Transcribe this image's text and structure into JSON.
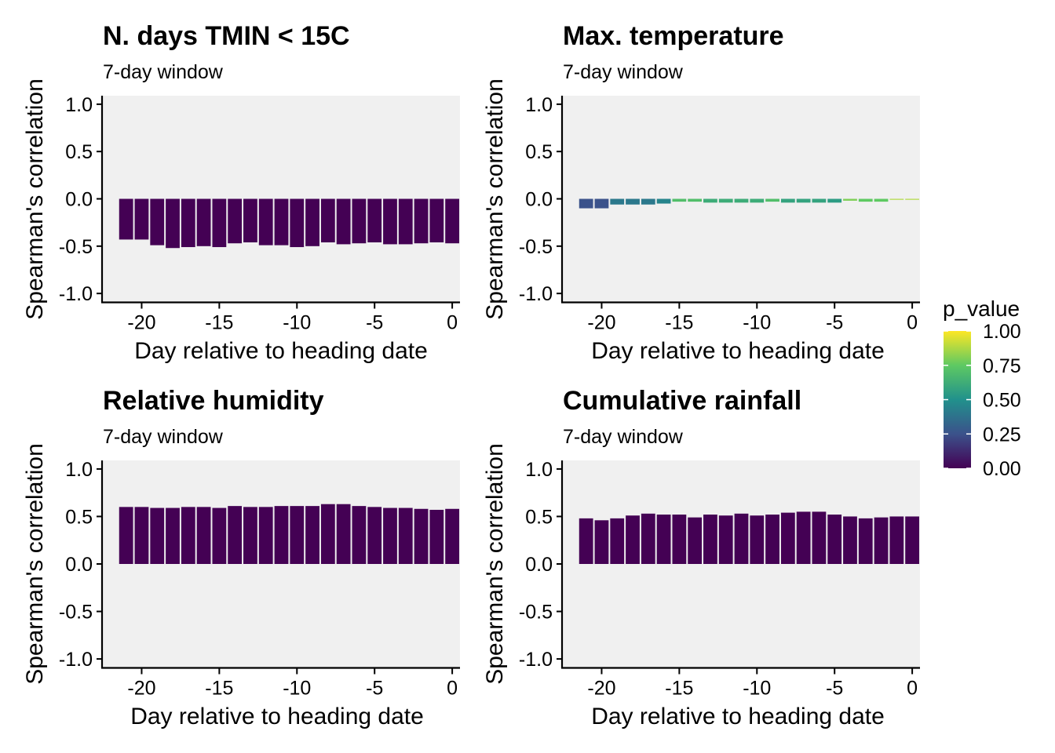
{
  "chart_data": [
    {
      "type": "bar",
      "title": "N. days TMIN < 15C",
      "subtitle": "7-day window",
      "xlabel": "Day relative to heading date",
      "ylabel": "Spearman's correlation",
      "ylim": [
        -1.0,
        1.0
      ],
      "xlim": [
        -22.5,
        0.5
      ],
      "xticks": [
        "-20",
        "-15",
        "-10",
        "-5",
        "0"
      ],
      "yticks": [
        "-1.0",
        "-0.5",
        "0.0",
        "0.5",
        "1.0"
      ],
      "x": [
        -21,
        -20,
        -19,
        -18,
        -17,
        -16,
        -15,
        -14,
        -13,
        -12,
        -11,
        -10,
        -9,
        -8,
        -7,
        -6,
        -5,
        -4,
        -3,
        -2,
        -1,
        0
      ],
      "values": [
        -0.43,
        -0.43,
        -0.49,
        -0.52,
        -0.51,
        -0.5,
        -0.51,
        -0.47,
        -0.46,
        -0.49,
        -0.49,
        -0.51,
        -0.5,
        -0.46,
        -0.48,
        -0.47,
        -0.46,
        -0.48,
        -0.48,
        -0.47,
        -0.46,
        -0.47
      ],
      "p_values": [
        0.0,
        0.0,
        0.0,
        0.0,
        0.0,
        0.0,
        0.0,
        0.0,
        0.0,
        0.0,
        0.0,
        0.0,
        0.0,
        0.0,
        0.0,
        0.0,
        0.0,
        0.0,
        0.0,
        0.0,
        0.0,
        0.0
      ],
      "background": "#f0f0f0",
      "grid": false
    },
    {
      "type": "bar",
      "title": "Max. temperature",
      "subtitle": "7-day window",
      "xlabel": "Day relative to heading date",
      "ylabel": "Spearman's correlation",
      "ylim": [
        -1.0,
        1.0
      ],
      "xlim": [
        -22.5,
        0.5
      ],
      "xticks": [
        "-20",
        "-15",
        "-10",
        "-5",
        "0"
      ],
      "yticks": [
        "-1.0",
        "-0.5",
        "0.0",
        "0.5",
        "1.0"
      ],
      "x": [
        -21,
        -20,
        -19,
        -18,
        -17,
        -16,
        -15,
        -14,
        -13,
        -12,
        -11,
        -10,
        -9,
        -8,
        -7,
        -6,
        -5,
        -4,
        -3,
        -2,
        -1,
        0
      ],
      "values": [
        -0.1,
        -0.1,
        -0.06,
        -0.06,
        -0.06,
        -0.05,
        -0.03,
        -0.03,
        -0.04,
        -0.04,
        -0.04,
        -0.04,
        -0.03,
        -0.04,
        -0.04,
        -0.04,
        -0.04,
        -0.02,
        -0.03,
        -0.03,
        -0.01,
        -0.01
      ],
      "p_values": [
        0.25,
        0.25,
        0.4,
        0.4,
        0.4,
        0.45,
        0.7,
        0.7,
        0.62,
        0.62,
        0.62,
        0.62,
        0.7,
        0.58,
        0.58,
        0.58,
        0.55,
        0.8,
        0.75,
        0.75,
        0.88,
        0.88
      ],
      "background": "#f0f0f0",
      "grid": false
    },
    {
      "type": "bar",
      "title": "Relative humidity",
      "subtitle": "7-day window",
      "xlabel": "Day relative to heading date",
      "ylabel": "Spearman's correlation",
      "ylim": [
        -1.0,
        1.0
      ],
      "xlim": [
        -22.5,
        0.5
      ],
      "xticks": [
        "-20",
        "-15",
        "-10",
        "-5",
        "0"
      ],
      "yticks": [
        "-1.0",
        "-0.5",
        "0.0",
        "0.5",
        "1.0"
      ],
      "x": [
        -21,
        -20,
        -19,
        -18,
        -17,
        -16,
        -15,
        -14,
        -13,
        -12,
        -11,
        -10,
        -9,
        -8,
        -7,
        -6,
        -5,
        -4,
        -3,
        -2,
        -1,
        0
      ],
      "values": [
        0.6,
        0.6,
        0.59,
        0.59,
        0.6,
        0.6,
        0.59,
        0.61,
        0.6,
        0.6,
        0.61,
        0.61,
        0.61,
        0.63,
        0.63,
        0.61,
        0.6,
        0.59,
        0.59,
        0.58,
        0.57,
        0.58
      ],
      "p_values": [
        0.0,
        0.0,
        0.0,
        0.0,
        0.0,
        0.0,
        0.0,
        0.0,
        0.0,
        0.0,
        0.0,
        0.0,
        0.0,
        0.0,
        0.0,
        0.0,
        0.0,
        0.0,
        0.0,
        0.0,
        0.0,
        0.0
      ],
      "background": "#f0f0f0",
      "grid": false
    },
    {
      "type": "bar",
      "title": "Cumulative rainfall",
      "subtitle": "7-day window",
      "xlabel": "Day relative to heading date",
      "ylabel": "Spearman's correlation",
      "ylim": [
        -1.0,
        1.0
      ],
      "xlim": [
        -22.5,
        0.5
      ],
      "xticks": [
        "-20",
        "-15",
        "-10",
        "-5",
        "0"
      ],
      "yticks": [
        "-1.0",
        "-0.5",
        "0.0",
        "0.5",
        "1.0"
      ],
      "x": [
        -21,
        -20,
        -19,
        -18,
        -17,
        -16,
        -15,
        -14,
        -13,
        -12,
        -11,
        -10,
        -9,
        -8,
        -7,
        -6,
        -5,
        -4,
        -3,
        -2,
        -1,
        0
      ],
      "values": [
        0.48,
        0.46,
        0.48,
        0.51,
        0.53,
        0.52,
        0.52,
        0.49,
        0.52,
        0.51,
        0.53,
        0.51,
        0.52,
        0.54,
        0.55,
        0.55,
        0.52,
        0.5,
        0.48,
        0.49,
        0.5,
        0.5
      ],
      "p_values": [
        0.0,
        0.0,
        0.0,
        0.0,
        0.0,
        0.0,
        0.0,
        0.0,
        0.0,
        0.0,
        0.0,
        0.0,
        0.0,
        0.0,
        0.0,
        0.0,
        0.0,
        0.0,
        0.0,
        0.0,
        0.0,
        0.0
      ],
      "background": "#f0f0f0",
      "grid": false
    }
  ],
  "legend": {
    "title": "p_value",
    "labels": [
      "1.00",
      "0.75",
      "0.50",
      "0.25",
      "0.00"
    ],
    "range": [
      0.0,
      1.0
    ],
    "palette": [
      "#440154",
      "#3b528b",
      "#21918c",
      "#5ec962",
      "#fde725"
    ],
    "placement": "right"
  }
}
